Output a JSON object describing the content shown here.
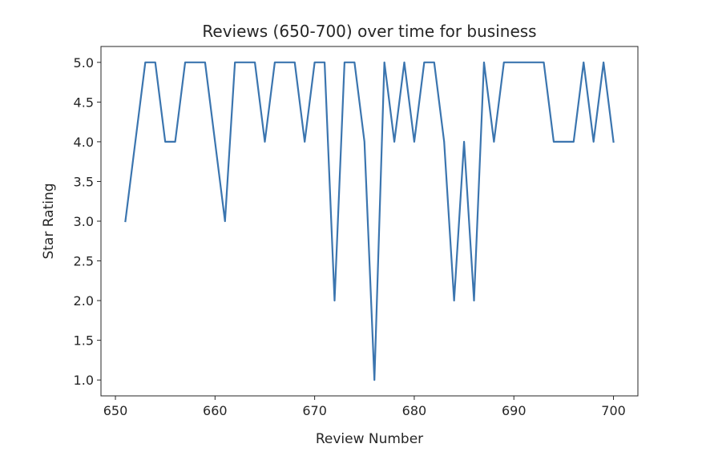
{
  "chart_data": {
    "type": "line",
    "title": "Reviews (650-700) over time for business",
    "xlabel": "Review Number",
    "ylabel": "Star Rating",
    "xlim": [
      648.55,
      702.45
    ],
    "ylim": [
      0.8,
      5.2
    ],
    "xticks": [
      650,
      660,
      670,
      680,
      690,
      700
    ],
    "yticks": [
      1.0,
      1.5,
      2.0,
      2.5,
      3.0,
      3.5,
      4.0,
      4.5,
      5.0
    ],
    "grid": false,
    "series": [
      {
        "color": "#3b75af",
        "x": [
          651,
          652,
          653,
          654,
          655,
          656,
          657,
          658,
          659,
          660,
          661,
          662,
          663,
          664,
          665,
          666,
          667,
          668,
          669,
          670,
          671,
          672,
          673,
          674,
          675,
          676,
          677,
          678,
          679,
          680,
          681,
          682,
          683,
          684,
          685,
          686,
          687,
          688,
          689,
          690,
          691,
          692,
          693,
          694,
          695,
          696,
          697,
          698,
          699,
          700
        ],
        "values": [
          3,
          4,
          5,
          5,
          4,
          4,
          5,
          5,
          5,
          4,
          3,
          5,
          5,
          5,
          4,
          5,
          5,
          5,
          4,
          5,
          5,
          2,
          5,
          5,
          4,
          1,
          5,
          4,
          5,
          4,
          5,
          5,
          4,
          2,
          4,
          2,
          5,
          4,
          5,
          5,
          5,
          5,
          5,
          4,
          4,
          4,
          5,
          4,
          5,
          4
        ]
      }
    ]
  }
}
